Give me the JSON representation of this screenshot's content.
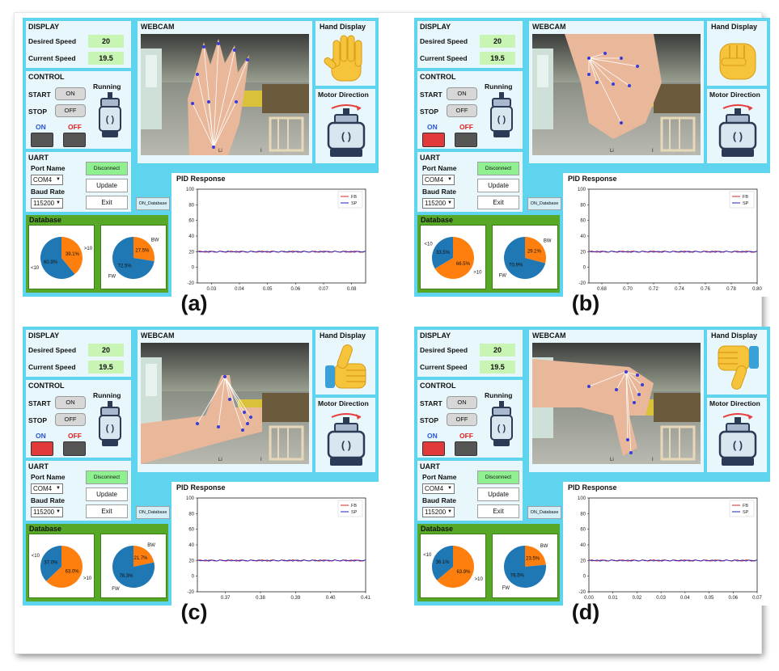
{
  "colors": {
    "panel_bg": "#5fd4ee",
    "value_bg": "#c9f5b4",
    "disconnect_bg": "#8ef08e",
    "database_bg": "#58a827",
    "pie_blue": "#1f77b4",
    "pie_orange": "#ff7f0e",
    "fb_line": "#d62728",
    "sp_line": "#2020c0"
  },
  "panels": [
    {
      "caption": "(a)",
      "display_title": "DISPLAY",
      "desired_label": "Desired Speed",
      "desired_value": "20",
      "current_label": "Current Speed",
      "current_value": "19.5",
      "control_title": "CONTROL",
      "start_label": "START",
      "start_btn": "ON",
      "stop_label": "STOP",
      "stop_btn": "OFF",
      "running_label": "Running",
      "on_label": "ON",
      "off_label": "OFF",
      "on_lit": false,
      "uart_title": "UART",
      "port_label": "Port Name",
      "port_value": "COM4",
      "baud_label": "Baud Rate",
      "baud_value": "115200",
      "disconnect_btn": "Disconnect",
      "update_btn": "Update",
      "exit_btn": "Exit",
      "on_database_btn": "ON_Database",
      "database_title": "Database",
      "webcam_title": "WEBCAM",
      "webcam_ticks": [
        "Li",
        "I"
      ],
      "hand_display_title": "Hand Display",
      "hand_icon": "open-hand-icon",
      "motor_direction_title": "Motor Direction",
      "pid_title": "PID Response",
      "pie1": {
        "slices": [
          {
            "label": ">10",
            "pct": "39.1%",
            "value": 39.1
          },
          {
            "label": "<10",
            "pct": "60.9%",
            "value": 60.9
          }
        ]
      },
      "pie2": {
        "slices": [
          {
            "label": "BW",
            "pct": "27.5%",
            "value": 27.5
          },
          {
            "label": "FW",
            "pct": "72.5%",
            "value": 72.5
          }
        ]
      },
      "pid_chart": {
        "xticks": [
          "0.03",
          "0.04",
          "0.05",
          "0.06",
          "0.07",
          "0.08"
        ]
      }
    },
    {
      "caption": "(b)",
      "display_title": "DISPLAY",
      "desired_label": "Desired Speed",
      "desired_value": "20",
      "current_label": "Current Speed",
      "current_value": "19.5",
      "control_title": "CONTROL",
      "start_label": "START",
      "start_btn": "ON",
      "stop_label": "STOP",
      "stop_btn": "OFF",
      "running_label": "Running",
      "on_label": "ON",
      "off_label": "OFF",
      "on_lit": true,
      "uart_title": "UART",
      "port_label": "Port Name",
      "port_value": "COM4",
      "baud_label": "Baud Rate",
      "baud_value": "115200",
      "disconnect_btn": "Disconnect",
      "update_btn": "Update",
      "exit_btn": "Exit",
      "on_database_btn": "ON_Database",
      "database_title": "Database",
      "webcam_title": "WEBCAM",
      "webcam_ticks": [
        "Li",
        "I"
      ],
      "hand_display_title": "Hand Display",
      "hand_icon": "fist-icon",
      "motor_direction_title": "Motor Direction",
      "pid_title": "PID Response",
      "pie1": {
        "slices": [
          {
            "label": ">10",
            "pct": "66.5%",
            "value": 66.5
          },
          {
            "label": "<10",
            "pct": "33.5%",
            "value": 33.5
          }
        ]
      },
      "pie2": {
        "slices": [
          {
            "label": "BW",
            "pct": "29.1%",
            "value": 29.1
          },
          {
            "label": "FW",
            "pct": "70.9%",
            "value": 70.9
          }
        ]
      },
      "pid_chart": {
        "xticks": [
          "0.68",
          "0.70",
          "0.72",
          "0.74",
          "0.76",
          "0.78",
          "0.80"
        ]
      }
    },
    {
      "caption": "(c)",
      "display_title": "DISPLAY",
      "desired_label": "Desired Speed",
      "desired_value": "20",
      "current_label": "Current Speed",
      "current_value": "19.5",
      "control_title": "CONTROL",
      "start_label": "START",
      "start_btn": "ON",
      "stop_label": "STOP",
      "stop_btn": "OFF",
      "running_label": "Running",
      "on_label": "ON",
      "off_label": "OFF",
      "on_lit": true,
      "uart_title": "UART",
      "port_label": "Port Name",
      "port_value": "COM4",
      "baud_label": "Baud Rate",
      "baud_value": "115200",
      "disconnect_btn": "Disconnect",
      "update_btn": "Update",
      "exit_btn": "Exit",
      "on_database_btn": "ON_Database",
      "database_title": "Database",
      "webcam_title": "WEBCAM",
      "webcam_ticks": [
        "Li",
        "I"
      ],
      "hand_display_title": "Hand Display",
      "hand_icon": "thumbs-up-icon",
      "motor_direction_title": "Motor Direction",
      "pid_title": "PID Response",
      "pie1": {
        "slices": [
          {
            "label": ">10",
            "pct": "63.0%",
            "value": 63.0
          },
          {
            "label": "<10",
            "pct": "37.0%",
            "value": 37.0
          }
        ]
      },
      "pie2": {
        "slices": [
          {
            "label": "BW",
            "pct": "21.7%",
            "value": 21.7
          },
          {
            "label": "FW",
            "pct": "78.3%",
            "value": 78.3
          }
        ]
      },
      "pid_chart": {
        "xticks": [
          "0.37",
          "0.38",
          "0.39",
          "0.40",
          "0.41"
        ]
      }
    },
    {
      "caption": "(d)",
      "display_title": "DISPLAY",
      "desired_label": "Desired Speed",
      "desired_value": "20",
      "current_label": "Current Speed",
      "current_value": "19.5",
      "control_title": "CONTROL",
      "start_label": "START",
      "start_btn": "ON",
      "stop_label": "STOP",
      "stop_btn": "OFF",
      "running_label": "Running",
      "on_label": "ON",
      "off_label": "OFF",
      "on_lit": true,
      "uart_title": "UART",
      "port_label": "Port Name",
      "port_value": "COM4",
      "baud_label": "Baud Rate",
      "baud_value": "115200",
      "disconnect_btn": "Disconnect",
      "update_btn": "Update",
      "exit_btn": "Exit",
      "on_database_btn": "ON_Database",
      "database_title": "Database",
      "webcam_title": "WEBCAM",
      "webcam_ticks": [
        "Li",
        "I"
      ],
      "hand_display_title": "Hand Display",
      "hand_icon": "thumbs-down-icon",
      "motor_direction_title": "Motor Direction",
      "pid_title": "PID Response",
      "pie1": {
        "slices": [
          {
            "label": ">10",
            "pct": "63.9%",
            "value": 63.9
          },
          {
            "label": "<10",
            "pct": "36.1%",
            "value": 36.1
          }
        ]
      },
      "pie2": {
        "slices": [
          {
            "label": "BW",
            "pct": "23.5%",
            "value": 23.5
          },
          {
            "label": "FW",
            "pct": "76.5%",
            "value": 76.5
          }
        ]
      },
      "pid_chart": {
        "xticks": [
          "0.00",
          "0.01",
          "0.02",
          "0.03",
          "0.04",
          "0.05",
          "0.06",
          "0.07"
        ]
      }
    }
  ],
  "chart_data": [
    {
      "type": "line",
      "title": "PID Response",
      "x": [
        0.025,
        0.035,
        0.045,
        0.055,
        0.065,
        0.075,
        0.085
      ],
      "series": [
        {
          "name": "FB",
          "values": [
            20,
            20,
            20,
            20,
            20,
            20,
            20
          ]
        },
        {
          "name": "SP",
          "values": [
            20,
            20,
            20,
            20,
            20,
            20,
            20
          ]
        }
      ],
      "ylim": [
        -20,
        100
      ],
      "yticks": [
        -20,
        0,
        20,
        40,
        60,
        80,
        100
      ],
      "legend": "top-right"
    },
    {
      "type": "line",
      "title": "PID Response",
      "x": [
        0.67,
        0.69,
        0.71,
        0.73,
        0.75,
        0.77,
        0.79,
        0.8
      ],
      "series": [
        {
          "name": "FB",
          "values": [
            20,
            20,
            20,
            20,
            20,
            20,
            20,
            20
          ]
        },
        {
          "name": "SP",
          "values": [
            20,
            20,
            20,
            20,
            20,
            20,
            20,
            20
          ]
        }
      ],
      "ylim": [
        -20,
        100
      ],
      "yticks": [
        -20,
        0,
        20,
        40,
        60,
        80,
        100
      ],
      "legend": "top-right"
    },
    {
      "type": "line",
      "title": "PID Response",
      "x": [
        0.362,
        0.37,
        0.38,
        0.39,
        0.4,
        0.41
      ],
      "series": [
        {
          "name": "FB",
          "values": [
            20,
            20,
            20,
            20,
            20,
            20
          ]
        },
        {
          "name": "SP",
          "values": [
            20,
            20,
            20,
            20,
            20,
            20
          ]
        }
      ],
      "ylim": [
        -20,
        100
      ],
      "yticks": [
        -20,
        0,
        20,
        40,
        60,
        80,
        100
      ],
      "legend": "top-right"
    },
    {
      "type": "line",
      "title": "PID Response",
      "x": [
        0.0,
        0.01,
        0.02,
        0.03,
        0.04,
        0.05,
        0.06,
        0.07
      ],
      "series": [
        {
          "name": "FB",
          "values": [
            20,
            20,
            20,
            20,
            20,
            20,
            20,
            20
          ]
        },
        {
          "name": "SP",
          "values": [
            20,
            20,
            20,
            20,
            20,
            20,
            20,
            20
          ]
        }
      ],
      "ylim": [
        -20,
        100
      ],
      "yticks": [
        -20,
        0,
        20,
        40,
        60,
        80,
        100
      ],
      "legend": "top-right"
    }
  ]
}
